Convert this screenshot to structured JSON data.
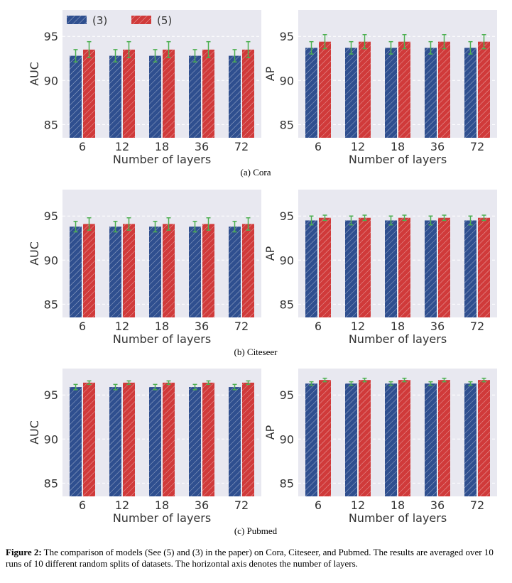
{
  "legend": [
    {
      "label": "(3)",
      "color": "#2f4f8f"
    },
    {
      "label": "(5)",
      "color": "#d03a3a"
    }
  ],
  "colors": {
    "bar3": "#2f4f8f",
    "bar5": "#d03a3a",
    "errorbar": "#4caf50",
    "plot_bg": "#e8e8f0",
    "grid": "#ffffff"
  },
  "subcaptions": [
    "(a) Cora",
    "(b) Citeseer",
    "(c) Pubmed"
  ],
  "caption": {
    "label": "Figure 2:",
    "text": " The comparison of models (See (5) and (3) in the paper) on Cora, Citeseer, and Pubmed. The results are averaged over 10 runs of 10 different random splits of datasets. The horizontal axis denotes the number of layers."
  },
  "chart_data": [
    {
      "type": "bar",
      "dataset": "Cora",
      "title": "",
      "xlabel": "Number of layers",
      "ylabel": "AUC",
      "categories": [
        "6",
        "12",
        "18",
        "36",
        "72"
      ],
      "ylim": [
        83.5,
        98
      ],
      "yticks": [
        85,
        90,
        95
      ],
      "series": [
        {
          "name": "(3)",
          "values": [
            92.8,
            92.8,
            92.8,
            92.8,
            92.8
          ],
          "errors": [
            0.7,
            0.7,
            0.7,
            0.7,
            0.7
          ]
        },
        {
          "name": "(5)",
          "values": [
            93.5,
            93.5,
            93.5,
            93.5,
            93.5
          ],
          "errors": [
            0.9,
            0.9,
            0.9,
            0.9,
            0.9
          ]
        }
      ]
    },
    {
      "type": "bar",
      "dataset": "Cora",
      "title": "",
      "xlabel": "Number of layers",
      "ylabel": "AP",
      "categories": [
        "6",
        "12",
        "18",
        "36",
        "72"
      ],
      "ylim": [
        83.5,
        98
      ],
      "yticks": [
        85,
        90,
        95
      ],
      "series": [
        {
          "name": "(3)",
          "values": [
            93.7,
            93.7,
            93.7,
            93.7,
            93.7
          ],
          "errors": [
            0.7,
            0.7,
            0.7,
            0.7,
            0.7
          ]
        },
        {
          "name": "(5)",
          "values": [
            94.4,
            94.4,
            94.4,
            94.4,
            94.4
          ],
          "errors": [
            0.8,
            0.8,
            0.8,
            0.8,
            0.8
          ]
        }
      ]
    },
    {
      "type": "bar",
      "dataset": "Citeseer",
      "title": "",
      "xlabel": "Number of layers",
      "ylabel": "AUC",
      "categories": [
        "6",
        "12",
        "18",
        "36",
        "72"
      ],
      "ylim": [
        83.5,
        98
      ],
      "yticks": [
        85,
        90,
        95
      ],
      "series": [
        {
          "name": "(3)",
          "values": [
            93.8,
            93.8,
            93.8,
            93.8,
            93.8
          ],
          "errors": [
            0.6,
            0.6,
            0.6,
            0.6,
            0.6
          ]
        },
        {
          "name": "(5)",
          "values": [
            94.1,
            94.1,
            94.1,
            94.1,
            94.1
          ],
          "errors": [
            0.7,
            0.7,
            0.7,
            0.7,
            0.7
          ]
        }
      ]
    },
    {
      "type": "bar",
      "dataset": "Citeseer",
      "title": "",
      "xlabel": "Number of layers",
      "ylabel": "AP",
      "categories": [
        "6",
        "12",
        "18",
        "36",
        "72"
      ],
      "ylim": [
        83.5,
        98
      ],
      "yticks": [
        85,
        90,
        95
      ],
      "series": [
        {
          "name": "(3)",
          "values": [
            94.5,
            94.5,
            94.5,
            94.5,
            94.5
          ],
          "errors": [
            0.5,
            0.5,
            0.5,
            0.5,
            0.5
          ]
        },
        {
          "name": "(5)",
          "values": [
            94.8,
            94.8,
            94.8,
            94.8,
            94.8
          ],
          "errors": [
            0.3,
            0.3,
            0.3,
            0.3,
            0.3
          ]
        }
      ]
    },
    {
      "type": "bar",
      "dataset": "Pubmed",
      "title": "",
      "xlabel": "Number of layers",
      "ylabel": "AUC",
      "categories": [
        "6",
        "12",
        "18",
        "36",
        "72"
      ],
      "ylim": [
        83.5,
        98
      ],
      "yticks": [
        85,
        90,
        95
      ],
      "series": [
        {
          "name": "(3)",
          "values": [
            95.9,
            95.9,
            95.9,
            95.9,
            95.9
          ],
          "errors": [
            0.3,
            0.3,
            0.3,
            0.3,
            0.3
          ]
        },
        {
          "name": "(5)",
          "values": [
            96.4,
            96.4,
            96.4,
            96.4,
            96.4
          ],
          "errors": [
            0.2,
            0.2,
            0.2,
            0.2,
            0.2
          ]
        }
      ]
    },
    {
      "type": "bar",
      "dataset": "Pubmed",
      "title": "",
      "xlabel": "Number of layers",
      "ylabel": "AP",
      "categories": [
        "6",
        "12",
        "18",
        "36",
        "72"
      ],
      "ylim": [
        83.5,
        98
      ],
      "yticks": [
        85,
        90,
        95
      ],
      "series": [
        {
          "name": "(3)",
          "values": [
            96.3,
            96.3,
            96.3,
            96.3,
            96.3
          ],
          "errors": [
            0.2,
            0.2,
            0.2,
            0.2,
            0.2
          ]
        },
        {
          "name": "(5)",
          "values": [
            96.7,
            96.7,
            96.7,
            96.7,
            96.7
          ],
          "errors": [
            0.2,
            0.2,
            0.2,
            0.2,
            0.2
          ]
        }
      ]
    }
  ]
}
